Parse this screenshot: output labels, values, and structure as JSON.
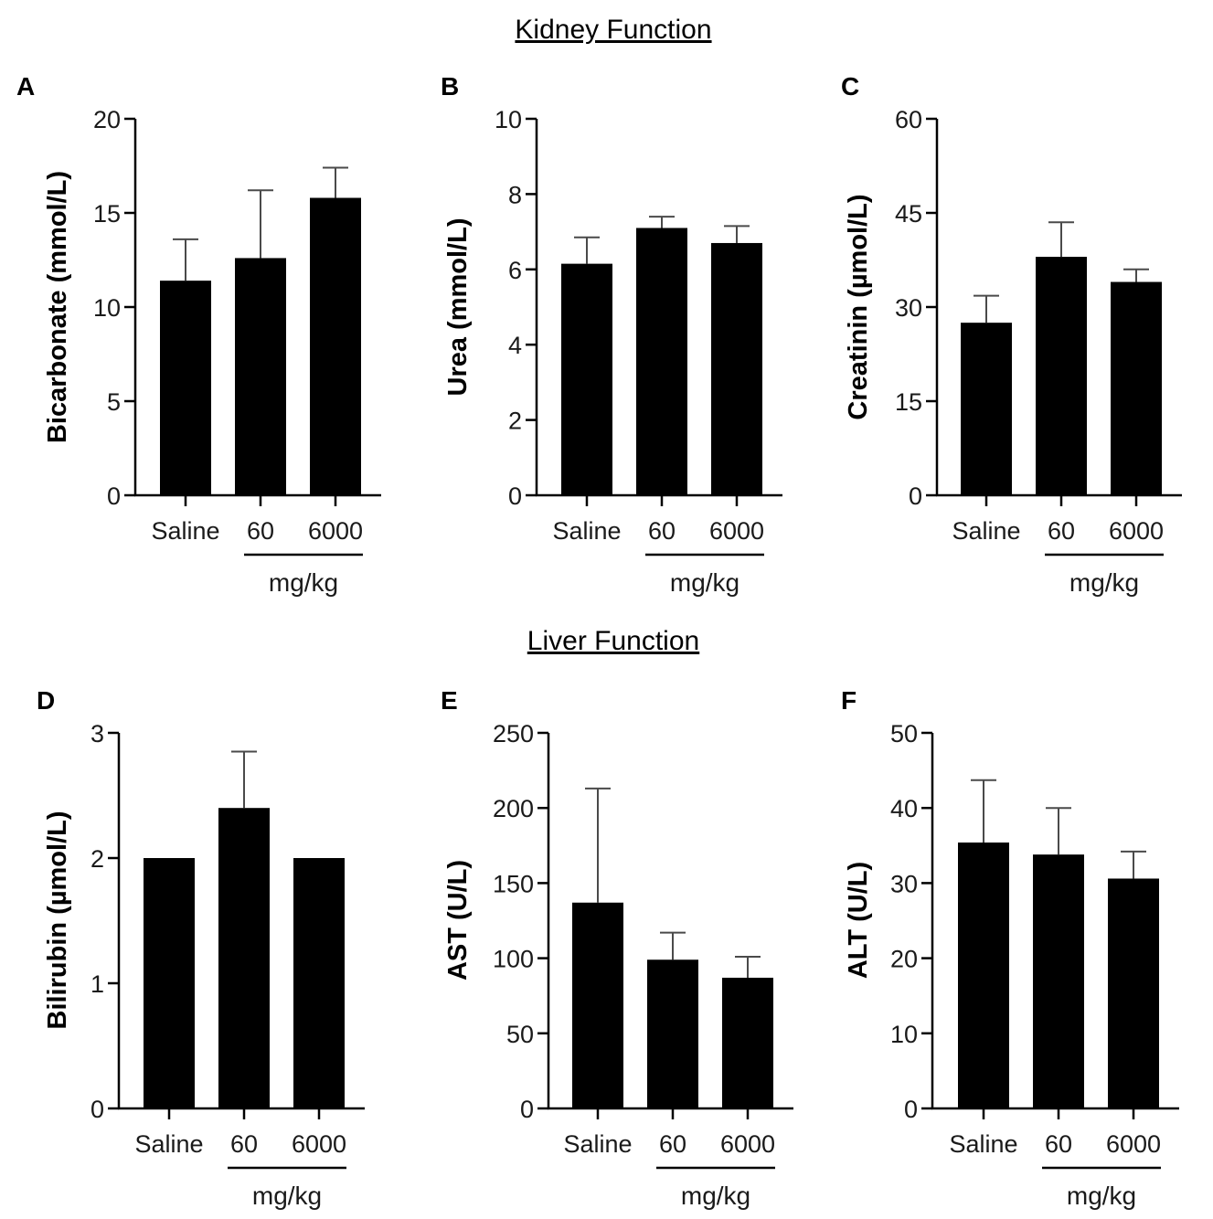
{
  "sections": {
    "kidney_title": "Kidney Function",
    "liver_title": "Liver Function"
  },
  "colors": {
    "bar": "#000000",
    "axis": "#000000",
    "error_bar": "#4a4a4a"
  },
  "chart_data": [
    {
      "panel": "A",
      "type": "bar",
      "categories": [
        "Saline",
        "60",
        "6000"
      ],
      "values": [
        11.4,
        12.6,
        15.8
      ],
      "errors": [
        2.2,
        3.6,
        1.6
      ],
      "ylabel": "Bicarbonate (mmol/L)",
      "ylim": [
        0,
        20
      ],
      "yticks": [
        0,
        5,
        10,
        15,
        20
      ],
      "group_label": "mg/kg"
    },
    {
      "panel": "B",
      "type": "bar",
      "categories": [
        "Saline",
        "60",
        "6000"
      ],
      "values": [
        6.15,
        7.1,
        6.7
      ],
      "errors": [
        0.7,
        0.3,
        0.45
      ],
      "ylabel": "Urea (mmol/L)",
      "ylim": [
        0,
        10
      ],
      "yticks": [
        0,
        2,
        4,
        6,
        8,
        10
      ],
      "group_label": "mg/kg"
    },
    {
      "panel": "C",
      "type": "bar",
      "categories": [
        "Saline",
        "60",
        "6000"
      ],
      "values": [
        27.5,
        38,
        34
      ],
      "errors": [
        4.3,
        5.5,
        2.0
      ],
      "ylabel": "Creatinin (µmol/L)",
      "ylim": [
        0,
        60
      ],
      "yticks": [
        0,
        15,
        30,
        45,
        60
      ],
      "group_label": "mg/kg"
    },
    {
      "panel": "D",
      "type": "bar",
      "categories": [
        "Saline",
        "60",
        "6000"
      ],
      "values": [
        2.0,
        2.4,
        2.0
      ],
      "errors": [
        0,
        0.45,
        0
      ],
      "ylabel": "Bilirubin (µmol/L)",
      "ylim": [
        0,
        3
      ],
      "yticks": [
        0,
        1,
        2,
        3
      ],
      "group_label": "mg/kg"
    },
    {
      "panel": "E",
      "type": "bar",
      "categories": [
        "Saline",
        "60",
        "6000"
      ],
      "values": [
        137,
        99,
        87
      ],
      "errors": [
        76,
        18,
        14
      ],
      "ylabel": "AST (U/L)",
      "ylim": [
        0,
        250
      ],
      "yticks": [
        0,
        50,
        100,
        150,
        200,
        250
      ],
      "group_label": "mg/kg"
    },
    {
      "panel": "F",
      "type": "bar",
      "categories": [
        "Saline",
        "60",
        "6000"
      ],
      "values": [
        35.4,
        33.8,
        30.6
      ],
      "errors": [
        8.3,
        6.2,
        3.6
      ],
      "ylabel": "ALT (U/L)",
      "ylim": [
        0,
        50
      ],
      "yticks": [
        0,
        10,
        20,
        30,
        40,
        50
      ],
      "group_label": "mg/kg"
    }
  ]
}
